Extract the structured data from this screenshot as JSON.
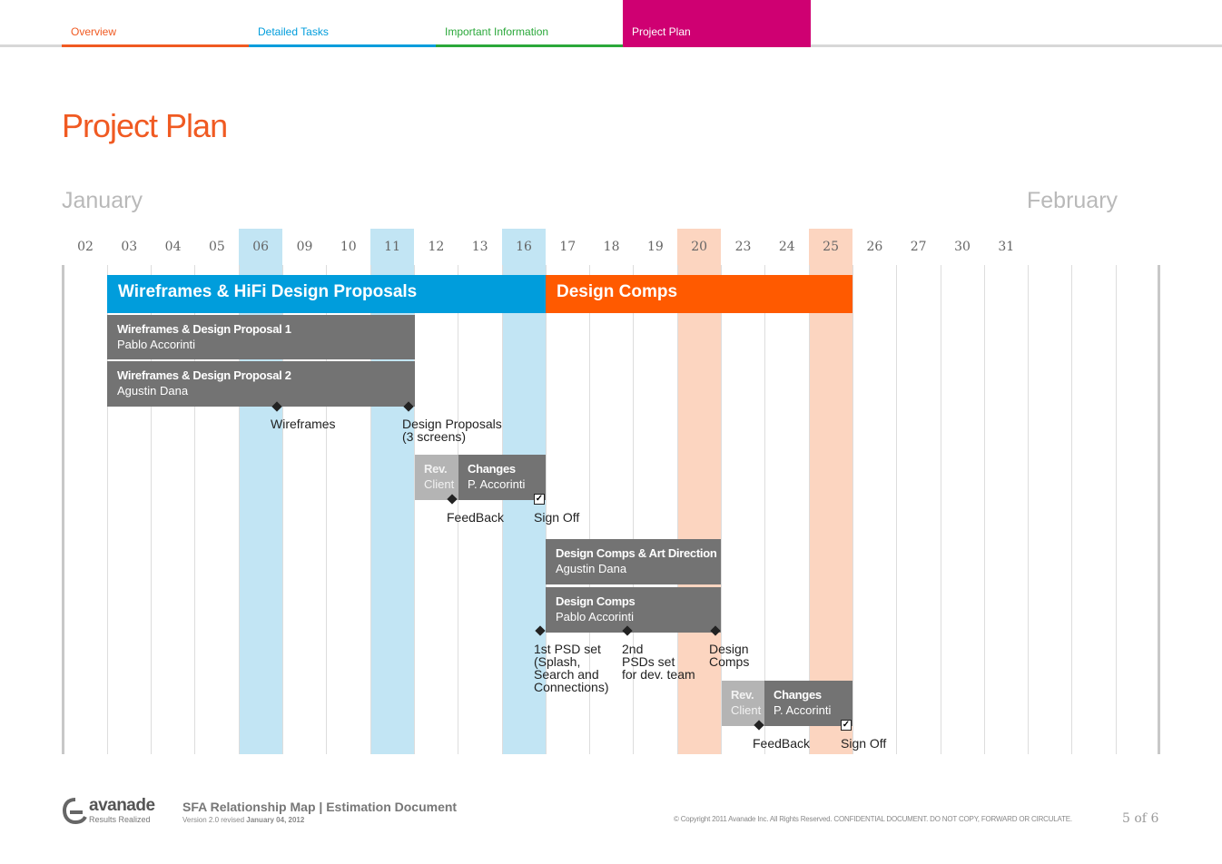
{
  "colors": {
    "orange": "#f05a22",
    "blue": "#009ddc",
    "green": "#2aa83a",
    "magenta": "#cf0072",
    "gray_bar": "#737373",
    "light_bar": "#b4b4b4",
    "blue_hl": "#c2e5f4",
    "peach_hl": "#fcd5c0"
  },
  "tabs": [
    {
      "label": "Overview",
      "color": "#f05a22",
      "active": false
    },
    {
      "label": "Detailed Tasks",
      "color": "#009ddc",
      "active": false
    },
    {
      "label": "Important Information",
      "color": "#2aa83a",
      "active": false
    },
    {
      "label": "Project Plan",
      "color": "#cf0072",
      "active": true
    }
  ],
  "page_title": "Project Plan",
  "months": {
    "first": "January",
    "second": "February"
  },
  "days": [
    "02",
    "03",
    "04",
    "05",
    "06",
    "09",
    "10",
    "11",
    "12",
    "13",
    "16",
    "17",
    "18",
    "19",
    "20",
    "23",
    "24",
    "25",
    "26",
    "27",
    "30",
    "31"
  ],
  "phases": [
    {
      "label": "Wireframes & HiFi Design Proposals",
      "color": "#009ddc"
    },
    {
      "label": "Design Comps",
      "color": "#ff5a00"
    }
  ],
  "tasks": {
    "wf1": {
      "title": "Wireframes & Design Proposal 1",
      "person": "Pablo Accorinti"
    },
    "wf2": {
      "title": "Wireframes & Design Proposal 2",
      "person": "Agustin Dana"
    },
    "rev1": {
      "title": "Rev.",
      "person": "Client"
    },
    "chg1": {
      "title": "Changes",
      "person": "P. Accorinti"
    },
    "dcad": {
      "title": "Design Comps & Art Direction",
      "person": "Agustin Dana"
    },
    "dc": {
      "title": "Design Comps",
      "person": "Pablo Accorinti"
    },
    "rev2": {
      "title": "Rev.",
      "person": "Client"
    },
    "chg2": {
      "title": "Changes",
      "person": "P. Accorinti"
    }
  },
  "milestones": {
    "wireframes": "Wireframes",
    "design_proposals": "Design Proposals\n(3 screens)",
    "feedback1": "FeedBack",
    "signoff1": "Sign Off",
    "psd1": "1st PSD set\n(Splash,\nSearch and\nConnections)",
    "psd2": "2nd\nPSDs set\nfor dev. team",
    "design_comps": "Design\nComps",
    "feedback2": "FeedBack",
    "signoff2": "Sign Off"
  },
  "icons": {
    "milestone": "diamond-icon",
    "signoff": "checkbox-icon",
    "logo": "avanade-logo"
  },
  "footer": {
    "brand": "avanade",
    "tagline": "Results Realized",
    "doc_title": "SFA Relationship Map | Estimation Document",
    "version_prefix": "Version 2.0 revised ",
    "version_date": "January 04, 2012",
    "copyright": "© Copyright 2011 Avanade Inc. All Rights Reserved. CONFIDENTIAL DOCUMENT. DO NOT COPY, FORWARD OR CIRCULATE.",
    "page": "5",
    "of": "of",
    "total": "6"
  }
}
